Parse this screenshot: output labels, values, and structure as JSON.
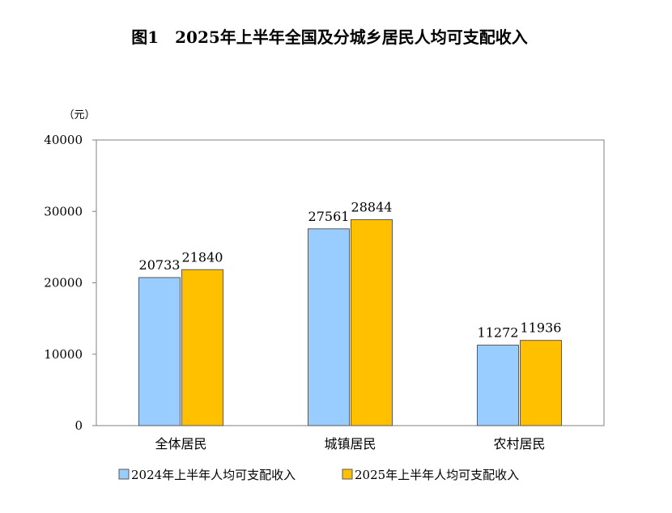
{
  "chart_data": {
    "type": "bar",
    "title": "图1　2025年上半年全国及分城乡居民人均可支配收入",
    "unit": "（元）",
    "categories": [
      "全体居民",
      "城镇居民",
      "农村居民"
    ],
    "series": [
      {
        "name": "2024年上半年人均可支配收入",
        "values": [
          20733,
          27561,
          11272
        ],
        "color": "#99ccff"
      },
      {
        "name": "2025年上半年人均可支配收入",
        "values": [
          21840,
          28844,
          11936
        ],
        "color": "#ffc000"
      }
    ],
    "ylim": [
      0,
      40000
    ],
    "yticks": [
      0,
      10000,
      20000,
      30000,
      40000
    ],
    "legend": "bottom",
    "grid": false
  }
}
